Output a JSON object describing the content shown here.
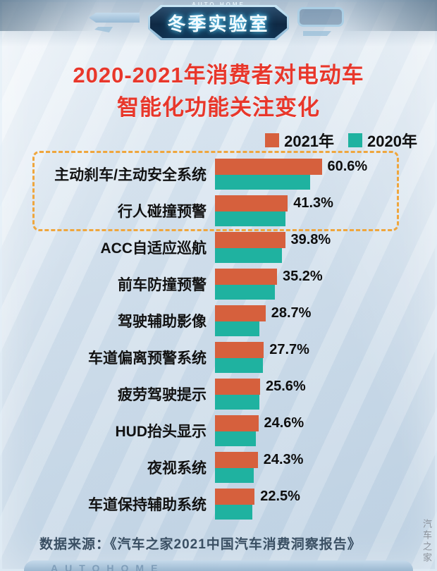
{
  "header": {
    "top_brand": "AUTO HOME",
    "badge": "冬季实验室"
  },
  "title": {
    "line1": "2020-2021年消费者对电动车",
    "line2": "智能化功能关注变化"
  },
  "legend": [
    {
      "label": "2021年",
      "color": "#d6603d"
    },
    {
      "label": "2020年",
      "color": "#1fb2a0"
    }
  ],
  "source": "数据来源：《汽车之家2021中国汽车消费洞察报告》",
  "footer": {
    "bottom_brand": "AUTOHOME",
    "watermark": "汽车之家"
  },
  "chart_data": {
    "type": "bar",
    "orientation": "horizontal",
    "title": "2020-2021年消费者对电动车智能化功能关注变化",
    "categories": [
      "主动刹车/主动安全系统",
      "行人碰撞预警",
      "ACC自适应巡航",
      "前车防撞预警",
      "驾驶辅助影像",
      "车道偏离预警系统",
      "疲劳驾驶提示",
      "HUD抬头显示",
      "夜视系统",
      "车道保持辅助系统"
    ],
    "series": [
      {
        "name": "2021年",
        "color": "#d6603d",
        "values": [
          60.6,
          41.3,
          39.8,
          35.2,
          28.7,
          27.7,
          25.6,
          24.6,
          24.3,
          22.5
        ]
      },
      {
        "name": "2020年",
        "color": "#1fb2a0",
        "estimated_from_bar_lengths": true,
        "values": [
          54,
          40,
          38,
          34,
          25,
          27,
          25,
          23,
          22,
          21
        ]
      }
    ],
    "value_labels": [
      "60.6%",
      "41.3%",
      "39.8%",
      "35.2%",
      "28.7%",
      "27.7%",
      "25.6%",
      "24.6%",
      "24.3%",
      "22.5%"
    ],
    "value_labels_series": "2021年",
    "highlighted_categories": [
      "主动刹车/主动安全系统",
      "行人碰撞预警"
    ],
    "xlim": [
      0,
      65
    ],
    "legend_position": "top-right",
    "grid": false
  }
}
